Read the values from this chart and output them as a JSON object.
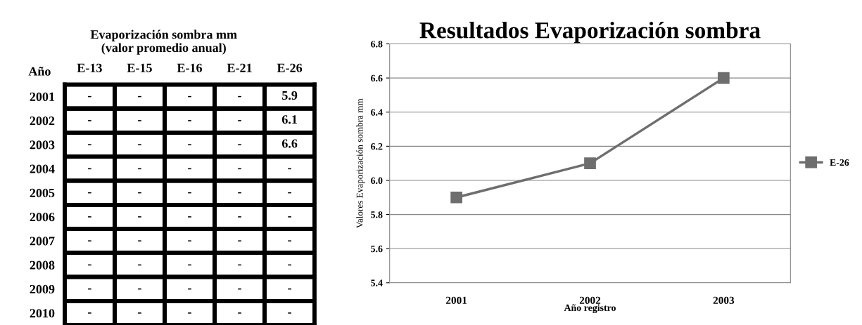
{
  "chart_data": [
    {
      "type": "heatmap",
      "title": "Evaporización sombra mm\n(valor promedio anual)",
      "ylabel": "Año",
      "categories": [
        "E-13",
        "E-15",
        "E-16",
        "E-21",
        "E-26"
      ],
      "y_categories": [
        "2001",
        "2002",
        "2003",
        "2004",
        "2005",
        "2006",
        "2007",
        "2008",
        "2009",
        "2010"
      ],
      "cells": [
        [
          null,
          null,
          null,
          null,
          5.9
        ],
        [
          null,
          null,
          null,
          null,
          6.1
        ],
        [
          null,
          null,
          null,
          null,
          6.6
        ],
        [
          null,
          null,
          null,
          null,
          null
        ],
        [
          null,
          null,
          null,
          null,
          null
        ],
        [
          null,
          null,
          null,
          null,
          null
        ],
        [
          null,
          null,
          null,
          null,
          null
        ],
        [
          null,
          null,
          null,
          null,
          null
        ],
        [
          null,
          null,
          null,
          null,
          null
        ],
        [
          null,
          null,
          null,
          null,
          null
        ]
      ],
      "cell_labels": [
        [
          "-",
          "-",
          "-",
          "-",
          "5.9"
        ],
        [
          "-",
          "-",
          "-",
          "-",
          "6.1"
        ],
        [
          "-",
          "-",
          "-",
          "-",
          "6.6"
        ],
        [
          "-",
          "-",
          "-",
          "-",
          "-"
        ],
        [
          "-",
          "-",
          "-",
          "-",
          "-"
        ],
        [
          "-",
          "-",
          "-",
          "-",
          "-"
        ],
        [
          "-",
          "-",
          "-",
          "-",
          "-"
        ],
        [
          "-",
          "-",
          "-",
          "-",
          "-"
        ],
        [
          "-",
          "-",
          "-",
          "-",
          "-"
        ],
        [
          "-",
          "-",
          "-",
          "-",
          "-"
        ]
      ]
    },
    {
      "type": "line",
      "title": "Resultados Evaporización sombra",
      "xlabel": "Año registro",
      "ylabel": "Valores Evaporización sombra mm",
      "categories": [
        "2001",
        "2002",
        "2003"
      ],
      "series": [
        {
          "name": "E-26",
          "color": "#6e6e6e",
          "values": [
            5.9,
            6.1,
            6.6
          ]
        }
      ],
      "ylim": [
        5.4,
        6.8
      ],
      "yticks": [
        {
          "value": 5.4,
          "label": "5.4"
        },
        {
          "value": 5.6,
          "label": "5.6"
        },
        {
          "value": 5.8,
          "label": "5.8"
        },
        {
          "value": 6.0,
          "label": "6.0"
        },
        {
          "value": 6.2,
          "label": "6.2"
        },
        {
          "value": 6.4,
          "label": "6.4"
        },
        {
          "value": 6.6,
          "label": "6.6"
        },
        {
          "value": 6.8,
          "label": "6.8"
        }
      ],
      "grid": "y",
      "legend": "right",
      "marker": "square",
      "line_style": "solid"
    }
  ]
}
